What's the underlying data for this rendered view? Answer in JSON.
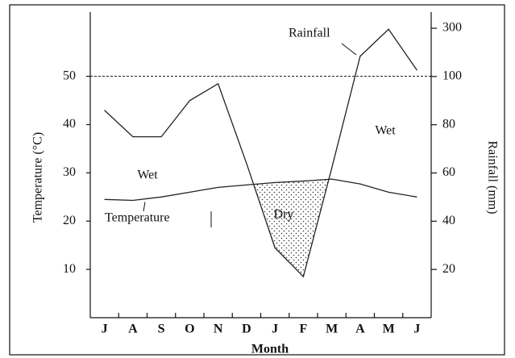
{
  "chart_data": {
    "type": "climograph",
    "x_label": "Month",
    "y_label": "Temperature (°C)",
    "y2_label": "Rainfall (mm)",
    "categories": [
      "J",
      "A",
      "S",
      "O",
      "N",
      "D",
      "J",
      "F",
      "M",
      "A",
      "M",
      "J"
    ],
    "series": [
      {
        "name": "Temperature",
        "color": "#222222",
        "values": [
          24.5,
          24.3,
          25,
          26,
          27,
          27.5,
          28,
          28.3,
          28.7,
          27.7,
          26,
          25
        ]
      },
      {
        "name": "Rainfall",
        "color": "#222222",
        "axis": "y2",
        "values": [
          86,
          75,
          75,
          90,
          97,
          64,
          29,
          17,
          62,
          184,
          296,
          126
        ]
      }
    ],
    "ylim": [
      0,
      63.3
    ],
    "yticks": [
      10,
      20,
      30,
      40,
      50
    ],
    "y2lim": [
      0,
      367
    ],
    "y2ticks": [
      20,
      40,
      60,
      80,
      100,
      300
    ],
    "reference_line": 50,
    "annotations": [
      "Wet",
      "Wet",
      "Dry"
    ],
    "dry_shading": true
  }
}
